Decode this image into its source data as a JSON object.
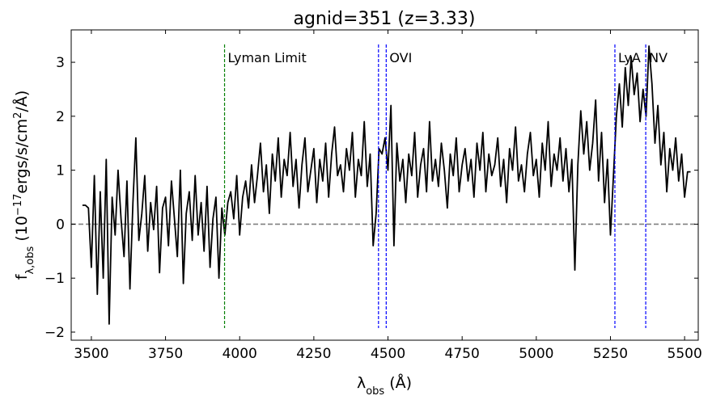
{
  "chart_data": {
    "type": "line",
    "title": "agnid=351 (z=3.33)",
    "xlabel": [
      {
        "text": "λ"
      },
      {
        "text": "obs",
        "shift": "sub"
      },
      {
        "text": " (Å)"
      }
    ],
    "ylabel": [
      {
        "text": "f"
      },
      {
        "text": "λ,obs",
        "shift": "sub"
      },
      {
        "text": " (10"
      },
      {
        "text": "−17",
        "shift": "super"
      },
      {
        "text": "ergs/s/cm"
      },
      {
        "text": "2",
        "shift": "super"
      },
      {
        "text": "/Å)"
      }
    ],
    "color": "#000000",
    "x": [
      3470,
      3480,
      3490,
      3500,
      3510,
      3520,
      3530,
      3540,
      3550,
      3560,
      3570,
      3580,
      3590,
      3600,
      3610,
      3620,
      3630,
      3640,
      3650,
      3660,
      3670,
      3680,
      3690,
      3700,
      3710,
      3720,
      3730,
      3740,
      3750,
      3760,
      3770,
      3780,
      3790,
      3800,
      3810,
      3820,
      3830,
      3840,
      3850,
      3860,
      3870,
      3880,
      3890,
      3900,
      3910,
      3920,
      3930,
      3940,
      3950,
      3960,
      3970,
      3980,
      3990,
      4000,
      4010,
      4020,
      4030,
      4040,
      4050,
      4060,
      4070,
      4080,
      4090,
      4100,
      4110,
      4120,
      4130,
      4140,
      4150,
      4160,
      4170,
      4180,
      4190,
      4200,
      4210,
      4220,
      4230,
      4240,
      4250,
      4260,
      4270,
      4280,
      4290,
      4300,
      4310,
      4320,
      4330,
      4340,
      4350,
      4360,
      4370,
      4380,
      4390,
      4400,
      4410,
      4420,
      4430,
      4440,
      4450,
      4460,
      4470,
      4480,
      4490,
      4500,
      4510,
      4520,
      4530,
      4540,
      4550,
      4560,
      4570,
      4580,
      4590,
      4600,
      4610,
      4620,
      4630,
      4640,
      4650,
      4660,
      4670,
      4680,
      4690,
      4700,
      4710,
      4720,
      4730,
      4740,
      4750,
      4760,
      4770,
      4780,
      4790,
      4800,
      4810,
      4820,
      4830,
      4840,
      4850,
      4860,
      4870,
      4880,
      4890,
      4900,
      4910,
      4920,
      4930,
      4940,
      4950,
      4960,
      4970,
      4980,
      4990,
      5000,
      5010,
      5020,
      5030,
      5040,
      5050,
      5060,
      5070,
      5080,
      5090,
      5100,
      5110,
      5120,
      5130,
      5140,
      5150,
      5160,
      5170,
      5180,
      5190,
      5200,
      5210,
      5220,
      5230,
      5240,
      5250,
      5260,
      5270,
      5280,
      5290,
      5300,
      5310,
      5320,
      5330,
      5340,
      5350,
      5360,
      5370,
      5380,
      5390,
      5400,
      5410,
      5420,
      5430,
      5440,
      5450,
      5460,
      5470,
      5480,
      5490,
      5500,
      5510,
      5520
    ],
    "values": [
      0.35,
      0.35,
      0.3,
      -0.8,
      0.9,
      -1.3,
      0.6,
      -1.0,
      1.2,
      -1.85,
      0.5,
      -0.2,
      1.0,
      0.1,
      -0.6,
      0.8,
      -1.2,
      0.4,
      1.6,
      -0.3,
      0.2,
      0.9,
      -0.5,
      0.4,
      -0.1,
      0.7,
      -0.9,
      0.3,
      0.5,
      -0.4,
      0.8,
      0.1,
      -0.6,
      1.0,
      -1.1,
      0.2,
      0.6,
      -0.3,
      0.9,
      -0.2,
      0.4,
      -0.5,
      0.7,
      -0.8,
      0.1,
      0.5,
      -1.0,
      0.3,
      -0.2,
      0.4,
      0.6,
      0.1,
      0.9,
      -0.2,
      0.5,
      0.8,
      0.3,
      1.1,
      0.4,
      0.9,
      1.5,
      0.6,
      1.1,
      0.2,
      1.3,
      0.8,
      1.6,
      0.5,
      1.2,
      0.9,
      1.7,
      0.7,
      1.2,
      0.3,
      1.1,
      1.6,
      0.6,
      1.0,
      1.4,
      0.4,
      1.2,
      0.8,
      1.5,
      0.5,
      1.3,
      1.8,
      0.9,
      1.1,
      0.6,
      1.4,
      1.0,
      1.7,
      0.5,
      1.2,
      0.9,
      1.9,
      0.7,
      1.3,
      -0.4,
      0.2,
      1.4,
      1.3,
      1.6,
      1.0,
      2.2,
      -0.4,
      1.5,
      0.8,
      1.2,
      0.4,
      1.3,
      0.9,
      1.7,
      0.5,
      1.1,
      1.4,
      0.6,
      1.9,
      0.8,
      1.2,
      0.7,
      1.5,
      1.0,
      0.3,
      1.3,
      0.9,
      1.6,
      0.6,
      1.1,
      1.4,
      0.8,
      1.2,
      0.5,
      1.5,
      1.0,
      1.7,
      0.6,
      1.3,
      0.9,
      1.1,
      1.6,
      0.7,
      1.2,
      0.4,
      1.4,
      1.0,
      1.8,
      0.8,
      1.1,
      0.6,
      1.3,
      1.7,
      0.9,
      1.2,
      0.5,
      1.5,
      1.0,
      1.9,
      0.7,
      1.3,
      1.0,
      1.6,
      0.8,
      1.4,
      0.6,
      1.2,
      -0.85,
      1.1,
      2.1,
      1.3,
      1.9,
      1.0,
      1.5,
      2.3,
      0.8,
      1.7,
      0.4,
      1.2,
      -0.2,
      0.9,
      2.0,
      2.6,
      1.8,
      2.9,
      2.2,
      3.1,
      2.4,
      2.8,
      1.9,
      2.5,
      2.0,
      3.3,
      2.6,
      1.5,
      2.2,
      1.1,
      1.7,
      0.6,
      1.4,
      1.0,
      1.6,
      0.8,
      1.3,
      0.5,
      0.97,
      0.97
    ],
    "hline": 0,
    "hline_color": "#808080",
    "lines": [
      {
        "label": "Lyman Limit",
        "x": [
          3949
        ],
        "color": "#008000"
      },
      {
        "label": "OVI",
        "x": [
          4468,
          4494
        ],
        "color": "#0000ff"
      },
      {
        "label": "LyA",
        "x": [
          5265
        ],
        "color": "#0000ff"
      },
      {
        "label": "NV",
        "x": [
          5369
        ],
        "color": "#0000ff"
      }
    ],
    "xlim": [
      3432,
      5546
    ],
    "xticks": [
      3500,
      3750,
      4000,
      4250,
      4500,
      4750,
      5000,
      5250,
      5500
    ],
    "ylim": [
      -2.15,
      3.6
    ],
    "yticks": [
      {
        "value": -2,
        "label": "−2"
      },
      {
        "value": -1,
        "label": "−1"
      },
      0,
      1,
      2,
      3
    ]
  }
}
